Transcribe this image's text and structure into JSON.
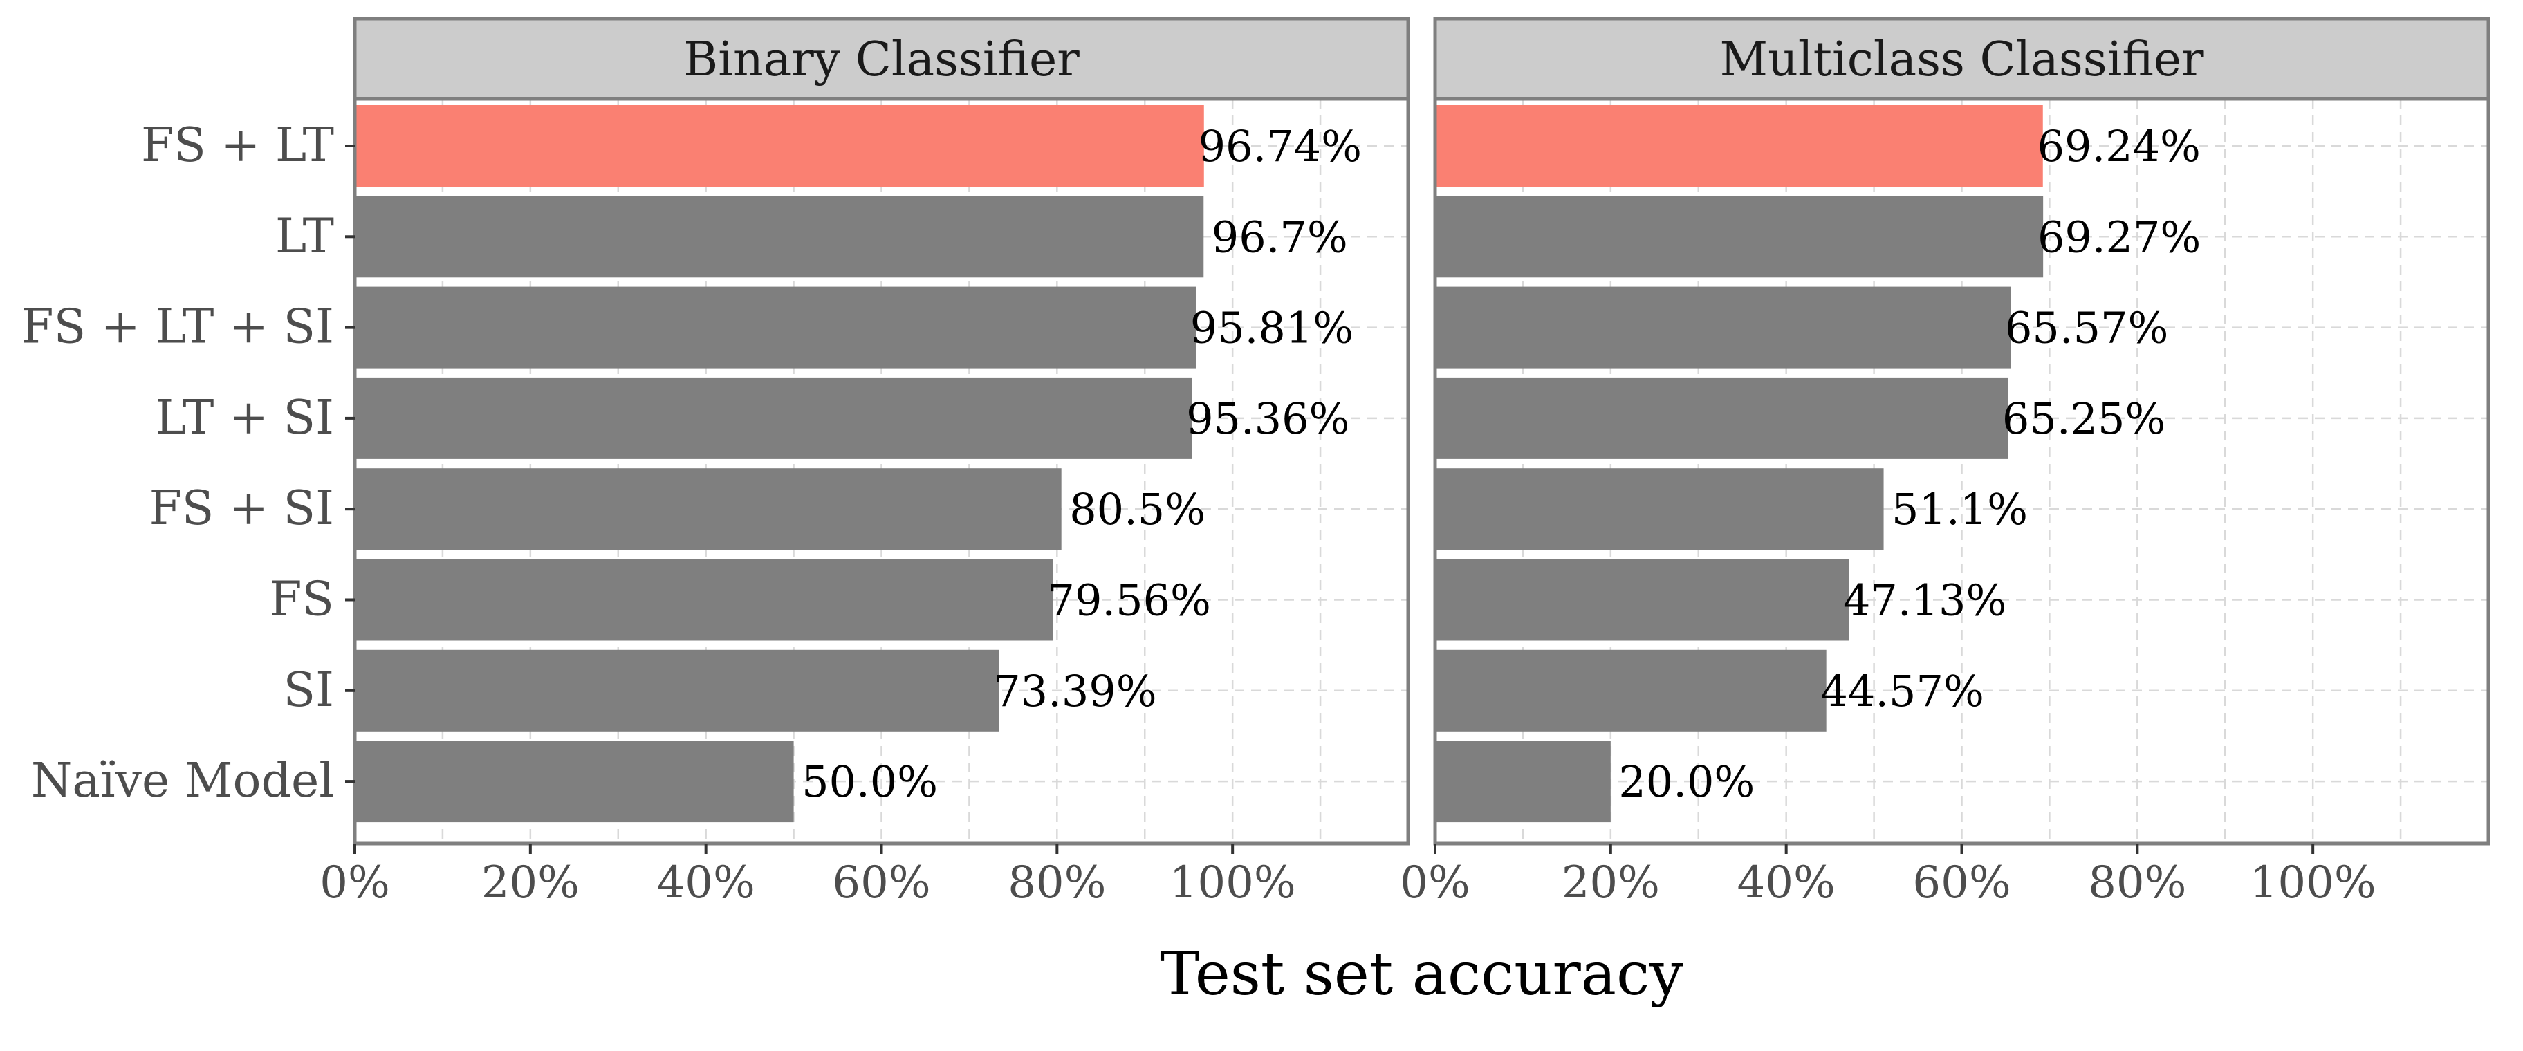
{
  "chart_data": {
    "type": "bar",
    "orientation": "horizontal",
    "xlabel": "Test set accuracy",
    "xlim": [
      0,
      120
    ],
    "xticks": [
      "0%",
      "20%",
      "40%",
      "60%",
      "80%",
      "100%"
    ],
    "xtick_values": [
      0,
      20,
      40,
      60,
      80,
      100
    ],
    "grid": true,
    "categories": [
      "FS + LT",
      "LT",
      "FS + LT + SI",
      "LT + SI",
      "FS + SI",
      "FS",
      "SI",
      "Naïve Model"
    ],
    "panels": [
      {
        "title": "Binary Classifier",
        "values": [
          96.74,
          96.7,
          95.81,
          95.36,
          80.5,
          79.56,
          73.39,
          50.0
        ],
        "labels": [
          "96.74%",
          "96.7%",
          "95.81%",
          "95.36%",
          "80.5%",
          "79.56%",
          "73.39%",
          "50.0%"
        ]
      },
      {
        "title": "Multiclass Classifier",
        "values": [
          69.24,
          69.27,
          65.57,
          65.25,
          51.1,
          47.13,
          44.57,
          20.0
        ],
        "labels": [
          "69.24%",
          "69.27%",
          "65.57%",
          "65.25%",
          "51.1%",
          "47.13%",
          "44.57%",
          "20.0%"
        ]
      }
    ],
    "highlight_category": "FS + LT",
    "colors": {
      "highlight": "#fa8072",
      "bar": "#7f7f7f",
      "strip_background": "#cccccc",
      "panel_border": "#7f7f7f",
      "grid": "#d9d9d9"
    }
  }
}
